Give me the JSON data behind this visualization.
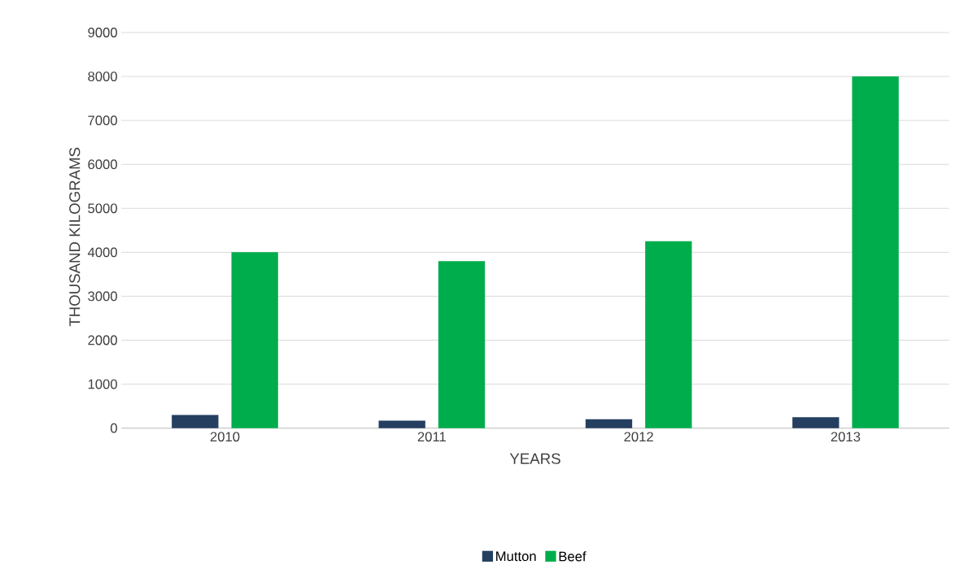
{
  "chart_data": {
    "type": "bar",
    "xlabel": "YEARS",
    "ylabel": "THOUSAND KILOGRAMS",
    "categories": [
      "2010",
      "2011",
      "2012",
      "2013"
    ],
    "series": [
      {
        "name": "Mutton",
        "color": "#243f60",
        "values": [
          300,
          170,
          200,
          250
        ]
      },
      {
        "name": "Beef",
        "color": "#00ad4c",
        "values": [
          4000,
          3800,
          4250,
          8000
        ]
      }
    ],
    "ylim": [
      0,
      9000
    ],
    "yticks": [
      0,
      1000,
      2000,
      3000,
      4000,
      5000,
      6000,
      7000,
      8000,
      9000
    ],
    "grid": "y",
    "legend": "bottom"
  }
}
